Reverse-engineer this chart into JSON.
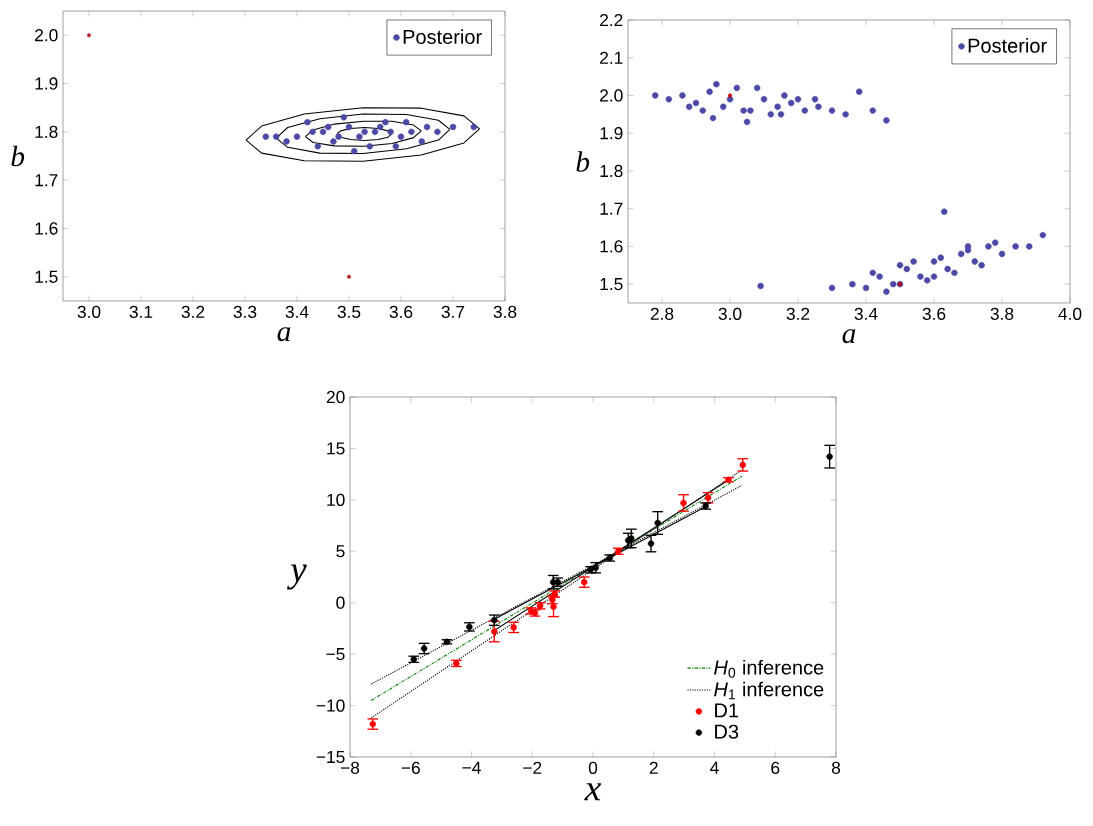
{
  "chart_data": [
    {
      "type": "scatter",
      "xlabel": "a",
      "ylabel": "b",
      "xlim": [
        2.95,
        3.8
      ],
      "ylim": [
        1.45,
        2.05
      ],
      "xticks": [
        {
          "value": 3.0,
          "label": "3.0"
        },
        3.1,
        3.2,
        3.3,
        3.4,
        3.5,
        3.6,
        3.7,
        3.8
      ],
      "yticks": [
        1.5,
        1.6,
        1.7,
        1.8,
        1.9,
        {
          "value": 2.0,
          "label": "2.0"
        }
      ],
      "legend": "top right",
      "series": [
        {
          "name": "Posterior",
          "color": "#4a4aa6",
          "marker": "circle",
          "x": [
            3.4,
            3.45,
            3.5,
            3.55,
            3.6,
            3.65,
            3.38,
            3.42,
            3.47,
            3.52,
            3.57,
            3.62,
            3.67,
            3.44,
            3.49,
            3.54,
            3.59,
            3.64,
            3.36,
            3.7,
            3.74,
            3.34,
            3.46,
            3.58,
            3.53,
            3.48,
            3.56,
            3.61,
            3.43,
            3.51
          ],
          "values": [
            1.79,
            1.8,
            1.81,
            1.8,
            1.79,
            1.81,
            1.78,
            1.82,
            1.78,
            1.79,
            1.82,
            1.8,
            1.8,
            1.77,
            1.83,
            1.77,
            1.77,
            1.78,
            1.79,
            1.81,
            1.81,
            1.79,
            1.81,
            1.8,
            1.8,
            1.79,
            1.81,
            1.82,
            1.8,
            1.76
          ]
        },
        {
          "color": "#b22222",
          "marker": "circle",
          "x": [
            3.0,
            3.5
          ],
          "values": [
            2.0,
            1.5
          ]
        },
        {
          "type": "line",
          "color": "#000000",
          "marker": "none",
          "x": [
            3.302,
            3.332,
            3.414,
            3.527,
            3.639,
            3.721,
            3.751
          ],
          "values": [
            1.783,
            1.812,
            1.837,
            1.85,
            1.849,
            1.833,
            1.806
          ]
        },
        {
          "type": "line",
          "color": "#000000",
          "marker": "none",
          "x": [
            3.302,
            3.332,
            3.414,
            3.527,
            3.639,
            3.721,
            3.751
          ],
          "values": [
            1.783,
            1.756,
            1.74,
            1.739,
            1.752,
            1.777,
            1.806
          ]
        },
        {
          "type": "line",
          "color": "#000000",
          "marker": "none",
          "x": [
            3.36,
            3.382,
            3.444,
            3.527,
            3.611,
            3.672,
            3.694
          ],
          "values": [
            1.787,
            1.809,
            1.827,
            1.837,
            1.836,
            1.824,
            1.805
          ]
        },
        {
          "type": "line",
          "color": "#000000",
          "marker": "none",
          "x": [
            3.36,
            3.382,
            3.444,
            3.527,
            3.611,
            3.672,
            3.694
          ],
          "values": [
            1.787,
            1.768,
            1.756,
            1.755,
            1.765,
            1.783,
            1.805
          ]
        },
        {
          "type": "line",
          "color": "#000000",
          "marker": "none",
          "x": [
            3.416,
            3.431,
            3.472,
            3.528,
            3.583,
            3.624,
            3.639
          ],
          "values": [
            1.79,
            1.804,
            1.816,
            1.822,
            1.822,
            1.814,
            1.802
          ]
        },
        {
          "type": "line",
          "color": "#000000",
          "marker": "none",
          "x": [
            3.416,
            3.431,
            3.472,
            3.528,
            3.583,
            3.624,
            3.639
          ],
          "values": [
            1.79,
            1.778,
            1.771,
            1.77,
            1.776,
            1.788,
            1.802
          ]
        },
        {
          "type": "line",
          "color": "#000000",
          "marker": "none",
          "x": [
            3.477,
            3.484,
            3.503,
            3.53,
            3.556,
            3.575,
            3.582
          ],
          "values": [
            1.796,
            1.802,
            1.807,
            1.809,
            1.807,
            1.802,
            1.796
          ]
        },
        {
          "type": "line",
          "color": "#000000",
          "marker": "none",
          "x": [
            3.477,
            3.484,
            3.503,
            3.53,
            3.556,
            3.575,
            3.582
          ],
          "values": [
            1.796,
            1.789,
            1.784,
            1.782,
            1.784,
            1.789,
            1.796
          ]
        }
      ]
    },
    {
      "type": "scatter",
      "xlabel": "a",
      "ylabel": "b",
      "xlim": [
        2.7,
        4.0
      ],
      "ylim": [
        1.45,
        2.2
      ],
      "xticks": [
        2.8,
        {
          "value": 3.0,
          "label": "3.0"
        },
        3.2,
        3.4,
        3.6,
        3.8,
        {
          "value": 4.0,
          "label": "4.0"
        }
      ],
      "yticks": [
        1.5,
        1.6,
        1.7,
        1.8,
        1.9,
        {
          "value": 2.0,
          "label": "2.0"
        },
        2.1,
        2.2
      ],
      "legend": "top right",
      "series": [
        {
          "name": "Posterior",
          "color": "#4a4aa6",
          "marker": "circle",
          "x": [
            2.78,
            2.82,
            2.86,
            2.9,
            2.94,
            2.98,
            3.02,
            3.06,
            3.1,
            3.14,
            3.18,
            3.22,
            3.26,
            3.3,
            3.34,
            2.88,
            2.92,
            2.96,
            3.0,
            3.04,
            3.08,
            3.12,
            3.16,
            3.2,
            2.95,
            3.05,
            3.15,
            3.25,
            3.38,
            3.42,
            3.46,
            3.36,
            3.4,
            3.44,
            3.48,
            3.52,
            3.56,
            3.6,
            3.64,
            3.68,
            3.72,
            3.76,
            3.8,
            3.84,
            3.88,
            3.92,
            3.42,
            3.46,
            3.5,
            3.54,
            3.58,
            3.62,
            3.66,
            3.7,
            3.74,
            3.78,
            3.5,
            3.6,
            3.7,
            3.3,
            3.63,
            3.09
          ],
          "values": [
            2.0,
            1.99,
            2.0,
            1.98,
            2.01,
            1.97,
            2.02,
            1.96,
            1.99,
            1.97,
            1.98,
            1.96,
            1.97,
            1.96,
            1.95,
            1.97,
            1.96,
            2.03,
            1.99,
            1.96,
            2.02,
            1.95,
            2.0,
            1.99,
            1.94,
            1.93,
            1.95,
            1.99,
            2.01,
            1.96,
            1.934,
            1.5,
            1.49,
            1.52,
            1.5,
            1.54,
            1.52,
            1.56,
            1.54,
            1.58,
            1.56,
            1.6,
            1.58,
            1.6,
            1.6,
            1.63,
            1.53,
            1.48,
            1.5,
            1.56,
            1.51,
            1.57,
            1.53,
            1.59,
            1.55,
            1.61,
            1.55,
            1.52,
            1.6,
            1.49,
            1.692,
            1.495
          ]
        },
        {
          "color": "#cc0000",
          "marker": "circle",
          "x": [
            3.0,
            3.5
          ],
          "values": [
            2.0,
            1.5
          ]
        }
      ]
    },
    {
      "type": "scatter",
      "xlabel": "x",
      "ylabel": "y",
      "xlim": [
        -8,
        8
      ],
      "ylim": [
        -15,
        20
      ],
      "xticks": [
        {
          "value": -8,
          "label": "−8"
        },
        {
          "value": -6,
          "label": "−6"
        },
        {
          "value": -4,
          "label": "−4"
        },
        {
          "value": -2,
          "label": "−2"
        },
        0,
        2,
        4,
        6,
        8
      ],
      "yticks": [
        {
          "value": -15,
          "label": "−15"
        },
        {
          "value": -10,
          "label": "−10"
        },
        {
          "value": -5,
          "label": "−5"
        },
        0,
        5,
        10,
        15,
        20
      ],
      "legend": "bottom right",
      "series": [
        {
          "name": "*H*$_{0}$ inference",
          "type": "line",
          "color": "#008000",
          "marker": "none",
          "line_style": "dashdot",
          "x": [
            -7.3,
            4.9
          ],
          "values": [
            -9.5,
            12.3
          ]
        },
        {
          "name": "*H*$_{1}$ inference",
          "type": "line",
          "color": "#000000",
          "marker": "none",
          "line_style": "dotted",
          "x": [
            -7.3,
            4.9
          ],
          "values": [
            -7.9,
            11.4
          ]
        },
        {
          "type": "line",
          "color": "#000000",
          "marker": "none",
          "line_style": "dotted",
          "x": [
            -7.3,
            4.9
          ],
          "values": [
            -11.2,
            12.9
          ]
        },
        {
          "type": "line",
          "color": "#000000",
          "marker": "none",
          "line_style": "solid",
          "x": [
            -3.25,
            4.5
          ],
          "values": [
            -2.7,
            12.0
          ]
        },
        {
          "type": "line",
          "color": "#000000",
          "marker": "none",
          "line_style": "solid",
          "x": [
            -3.25,
            3.75
          ],
          "values": [
            -1.6,
            9.4
          ]
        },
        {
          "name": "D1",
          "color": "#ff0000",
          "marker": "circle",
          "x": [
            -7.25,
            -4.5,
            -3.25,
            -2.61,
            -2.04,
            -1.91,
            -1.74,
            -1.26,
            -1.34,
            -1.3,
            -0.29,
            0.83,
            2.98,
            3.79,
            4.46,
            4.93
          ],
          "values": [
            -11.8,
            -5.9,
            -2.8,
            -2.4,
            -0.8,
            -1.0,
            -0.3,
            0.85,
            0.3,
            -0.4,
            2.0,
            5.0,
            9.7,
            10.2,
            11.95,
            13.4
          ],
          "errors": [
            0.5,
            0.3,
            1.0,
            0.5,
            0.3,
            0.3,
            0.3,
            0.3,
            0.4,
            0.95,
            0.5,
            0.3,
            0.8,
            0.5,
            0.2,
            0.6
          ]
        },
        {
          "name": "D3",
          "color": "#000000",
          "marker": "circle",
          "x": [
            -5.9,
            -5.56,
            -4.81,
            -4.07,
            -3.25,
            -1.31,
            -1.16,
            -0.08,
            0.09,
            0.55,
            1.16,
            1.26,
            1.91,
            2.13,
            3.71,
            7.79
          ],
          "values": [
            -5.5,
            -4.45,
            -3.8,
            -2.35,
            -1.7,
            2.0,
            2.0,
            3.2,
            3.4,
            4.35,
            6.05,
            6.25,
            5.75,
            7.75,
            9.4,
            14.2
          ],
          "errors": [
            0.3,
            0.5,
            0.2,
            0.4,
            0.5,
            0.65,
            0.4,
            0.3,
            0.5,
            0.3,
            0.7,
            0.9,
            0.8,
            1.1,
            0.3,
            1.1
          ]
        }
      ]
    }
  ]
}
